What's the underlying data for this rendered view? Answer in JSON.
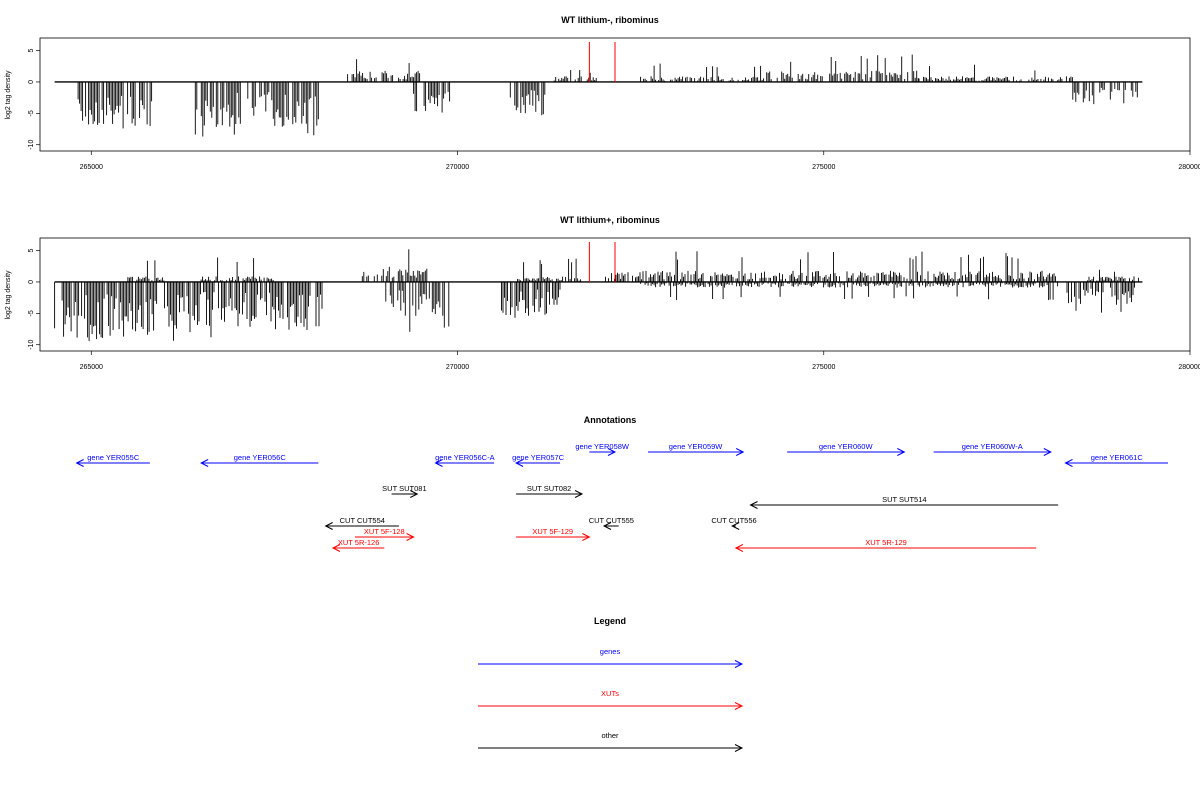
{
  "colors": {
    "genes": "#0000ff",
    "XUTs": "#ff0000",
    "other": "#000000",
    "marker": "#ff0000"
  },
  "chart_data": [
    {
      "type": "bar",
      "title": "WT lithium-, ribominus",
      "xlabel": "",
      "ylabel": "log2 tag density",
      "xlim": [
        264300,
        280000
      ],
      "ylim": [
        -11,
        7
      ],
      "x_ticks": [
        "265000",
        "270000",
        "275000",
        "280000"
      ],
      "y_ticks": [
        "5",
        "0",
        "-5",
        "-10"
      ],
      "grid": false,
      "markers": [
        271800,
        272150
      ],
      "regions": [
        [
          264800,
          265850,
          -1,
          -4,
          -9
        ],
        [
          266400,
          268100,
          -1,
          -4,
          -9
        ],
        [
          268500,
          269500,
          1,
          1,
          4
        ],
        [
          269400,
          269900,
          -1,
          -3,
          -8.5
        ],
        [
          270700,
          271200,
          -1,
          -3,
          -5
        ],
        [
          271300,
          271900,
          1,
          0.5,
          2
        ],
        [
          272500,
          274200,
          1,
          0.5,
          3
        ],
        [
          274200,
          276300,
          1,
          1,
          4.5
        ],
        [
          276300,
          277700,
          1,
          0.5,
          3
        ],
        [
          277800,
          278400,
          1,
          0.5,
          2
        ],
        [
          278400,
          279300,
          -1,
          -2,
          -4
        ]
      ]
    },
    {
      "type": "bar",
      "title": "WT lithium+, ribominus",
      "xlabel": "",
      "ylabel": "log2 tag density",
      "xlim": [
        264300,
        280000
      ],
      "ylim": [
        -11,
        7
      ],
      "x_ticks": [
        "265000",
        "270000",
        "275000",
        "280000"
      ],
      "y_ticks": [
        "5",
        "0",
        "-5",
        "-10"
      ],
      "grid": false,
      "markers": [
        271800,
        272150
      ],
      "regions": [
        [
          264500,
          265900,
          -1,
          -5,
          -10
        ],
        [
          265500,
          266000,
          1,
          0.5,
          4
        ],
        [
          266000,
          268200,
          -1,
          -4,
          -10
        ],
        [
          266500,
          267500,
          1,
          0.5,
          4
        ],
        [
          268700,
          269600,
          1,
          1.5,
          6
        ],
        [
          269000,
          269900,
          -1,
          -3,
          -8.5
        ],
        [
          270600,
          271400,
          -1,
          -3,
          -6
        ],
        [
          270800,
          271700,
          1,
          0.5,
          4
        ],
        [
          272000,
          278200,
          1,
          1,
          5
        ],
        [
          272500,
          278200,
          -1,
          -0.5,
          -3
        ],
        [
          278300,
          279300,
          -1,
          -2,
          -5
        ],
        [
          278600,
          279300,
          1,
          0.5,
          2
        ]
      ]
    }
  ],
  "annotations": {
    "title": "Annotations",
    "items": [
      {
        "label": "gene YER055C",
        "type": "genes",
        "from": 265800,
        "to": 264800,
        "row": 1
      },
      {
        "label": "gene YER056C",
        "type": "genes",
        "from": 268100,
        "to": 266500,
        "row": 1
      },
      {
        "label": "gene YER056C-A",
        "type": "genes",
        "from": 270500,
        "to": 269700,
        "row": 1
      },
      {
        "label": "gene YER057C",
        "type": "genes",
        "from": 271400,
        "to": 270800,
        "row": 1
      },
      {
        "label": "gene YER058W",
        "type": "genes",
        "from": 271800,
        "to": 272150,
        "row": 0
      },
      {
        "label": "gene YER059W",
        "type": "genes",
        "from": 272600,
        "to": 273900,
        "row": 0
      },
      {
        "label": "gene YER060W",
        "type": "genes",
        "from": 274500,
        "to": 276100,
        "row": 0
      },
      {
        "label": "gene YER060W-A",
        "type": "genes",
        "from": 276500,
        "to": 278100,
        "row": 0
      },
      {
        "label": "gene YER061C",
        "type": "genes",
        "from": 279700,
        "to": 278300,
        "row": 1
      },
      {
        "label": "SUT SUT081",
        "type": "other",
        "from": 269100,
        "to": 269450,
        "row": 2
      },
      {
        "label": "SUT SUT082",
        "type": "other",
        "from": 270800,
        "to": 271700,
        "row": 2
      },
      {
        "label": "SUT SUT514",
        "type": "other",
        "from": 278200,
        "to": 274000,
        "row": 3
      },
      {
        "label": "CUT CUT554",
        "type": "other",
        "from": 269200,
        "to": 268200,
        "row": 4
      },
      {
        "label": "CUT CUT555",
        "type": "other",
        "from": 272200,
        "to": 272000,
        "row": 4
      },
      {
        "label": "CUT CUT556",
        "type": "other",
        "from": 273800,
        "to": 273750,
        "row": 4
      },
      {
        "label": "XUT 5F-128",
        "type": "XUTs",
        "from": 268600,
        "to": 269400,
        "row": 5
      },
      {
        "label": "XUT 5F-129",
        "type": "XUTs",
        "from": 270800,
        "to": 271800,
        "row": 5
      },
      {
        "label": "XUT 5R-126",
        "type": "XUTs",
        "from": 269000,
        "to": 268300,
        "row": 6
      },
      {
        "label": "XUT 5R-129",
        "type": "XUTs",
        "from": 277900,
        "to": 273800,
        "row": 6
      }
    ]
  },
  "legend": {
    "title": "Legend",
    "items": [
      {
        "label": "genes",
        "type": "genes"
      },
      {
        "label": "XUTs",
        "type": "XUTs"
      },
      {
        "label": "other",
        "type": "other"
      }
    ]
  }
}
